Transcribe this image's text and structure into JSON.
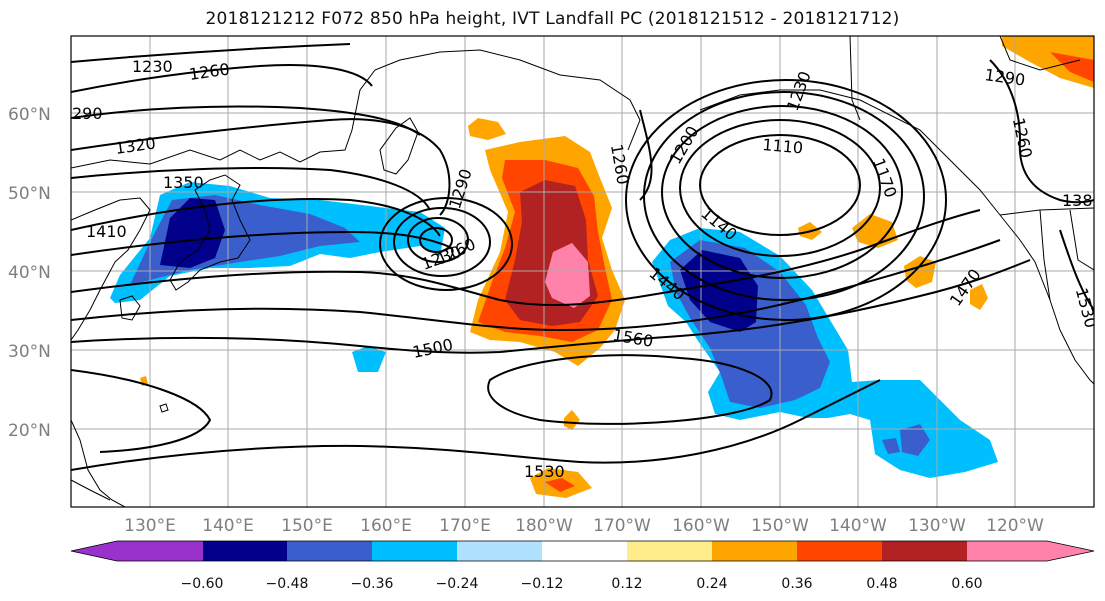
{
  "title": "2018121212 F072 850 hPa height, IVT Landfall PC (2018121512 - 2018121712)",
  "map": {
    "lat_labels": [
      "60°N",
      "50°N",
      "40°N",
      "30°N",
      "20°N"
    ],
    "lon_labels": [
      "130°E",
      "140°E",
      "150°E",
      "160°E",
      "170°E",
      "180°W",
      "170°W",
      "160°W",
      "150°W",
      "140°W",
      "130°W",
      "120°W"
    ],
    "contour_labels": [
      "1230",
      "1260",
      "290",
      "1320",
      "1350",
      "1410",
      "1290",
      "1230",
      "1260",
      "1500",
      "1560",
      "1440",
      "1140",
      "1110",
      "1200",
      "1230",
      "1260",
      "1170",
      "1290",
      "1260",
      "138",
      "1470",
      "1530",
      "1530"
    ],
    "colors": {
      "frame": "#000000",
      "grid": "#a9a9a9",
      "contour": "#000000",
      "coast": "#000000"
    }
  },
  "colorbar": {
    "colors": [
      "#9932cc",
      "#00008b",
      "#3a5fcd",
      "#00bfff",
      "#b0e2ff",
      "#ffffff",
      "#ffec8b",
      "#ffa500",
      "#ff4500",
      "#b22222",
      "#ff82ab"
    ],
    "tick_labels": [
      "−0.60",
      "−0.48",
      "−0.36",
      "−0.24",
      "−0.12",
      "0.12",
      "0.24",
      "0.36",
      "0.48",
      "0.60"
    ]
  }
}
